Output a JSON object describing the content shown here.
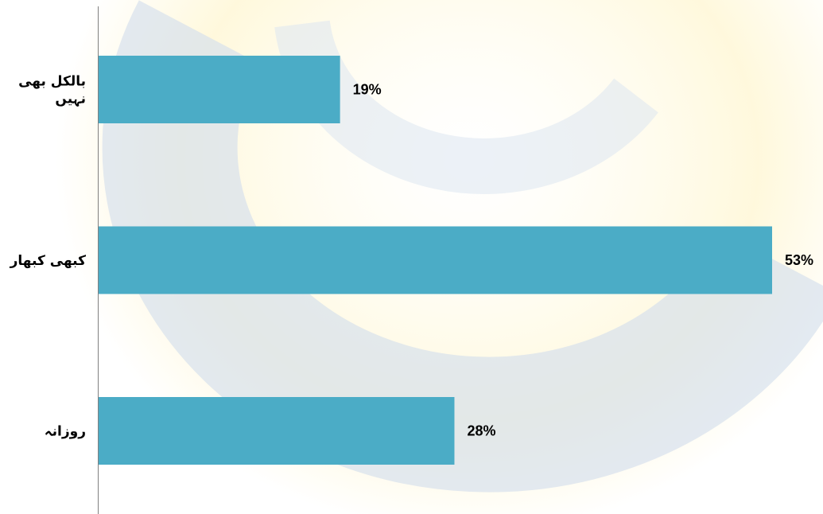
{
  "chart_data": {
    "type": "bar",
    "orientation": "horizontal",
    "categories": [
      [
        "بالکل بھی",
        "نہیں"
      ],
      [
        "کبھی کبھار"
      ],
      [
        "روزانہ"
      ]
    ],
    "values": [
      19,
      53,
      28
    ],
    "value_labels": [
      "19%",
      "53%",
      "28%"
    ],
    "unit": "%",
    "xlim": [
      0,
      53
    ],
    "title": "",
    "xlabel": "",
    "ylabel": "",
    "grid": false,
    "legend": "none"
  },
  "colors": {
    "bar": "#4BACC6",
    "axis": "#808080",
    "watermark_ring": "#c8d6e8",
    "watermark_glow": "#fff2b8"
  }
}
